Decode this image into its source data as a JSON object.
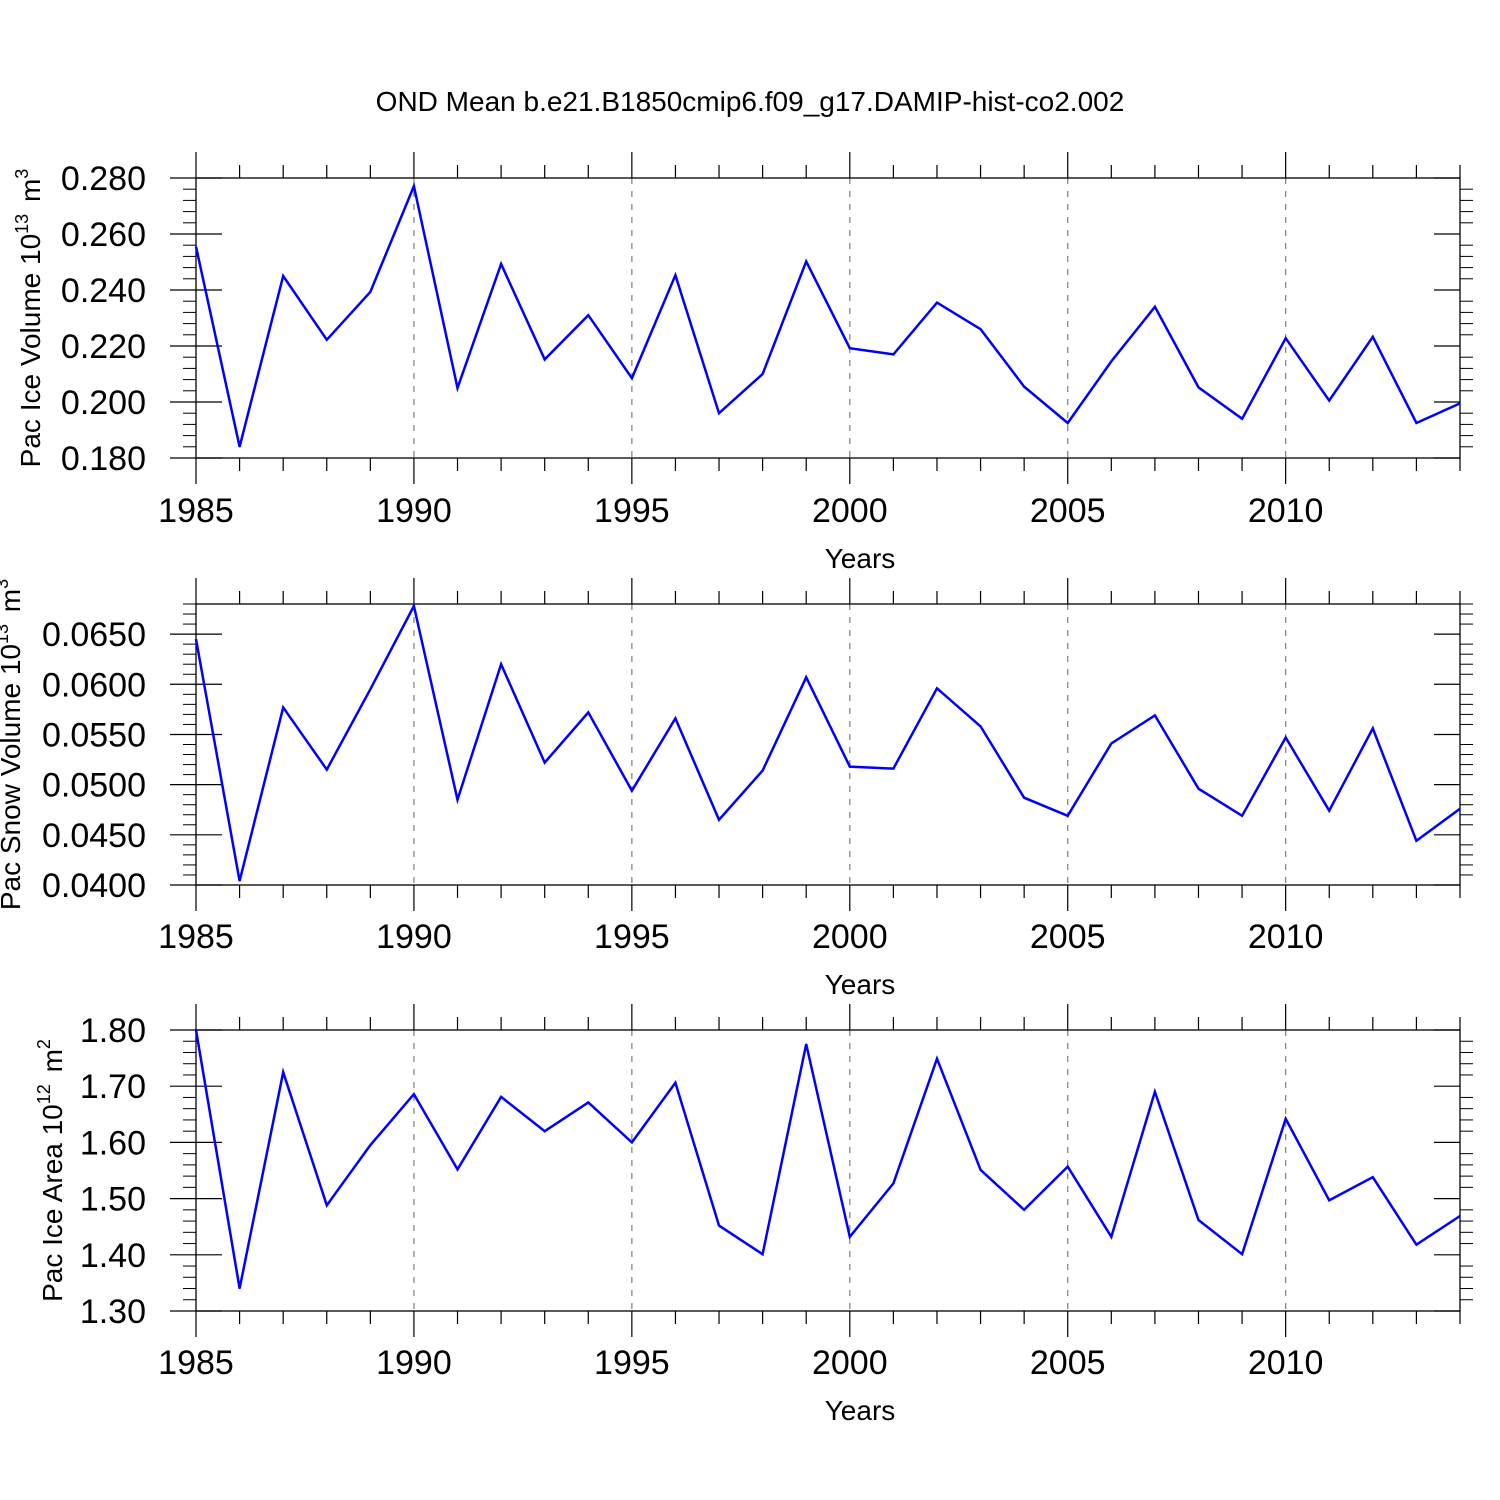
{
  "title": "OND Mean b.e21.B1850cmip6.f09_g17.DAMIP-hist-co2.002",
  "series_color": "#0000ff",
  "chart_data": [
    {
      "type": "line",
      "title": "",
      "xlabel": "Years",
      "ylabel": "Pac Ice Volume 10",
      "ylabel_exp": "13",
      "ylabel_unit": "m",
      "ylabel_unit_exp": "3",
      "xlim": [
        1985,
        2014
      ],
      "ylim": [
        0.18,
        0.28
      ],
      "xticks": [
        1985,
        1990,
        1995,
        2000,
        2005,
        2010
      ],
      "xtick_labels": [
        "1985",
        "1990",
        "1995",
        "2000",
        "2005",
        "2010"
      ],
      "yticks": [
        0.18,
        0.2,
        0.22,
        0.24,
        0.26,
        0.28
      ],
      "ytick_labels": [
        "0.180",
        "0.200",
        "0.220",
        "0.240",
        "0.260",
        "0.280"
      ],
      "yminor_step": 0.004,
      "x": [
        1985,
        1986,
        1987,
        1988,
        1989,
        1990,
        1991,
        1992,
        1993,
        1994,
        1995,
        1996,
        1997,
        1998,
        1999,
        2000,
        2001,
        2002,
        2003,
        2004,
        2005,
        2006,
        2007,
        2008,
        2009,
        2010,
        2011,
        2012,
        2013,
        2014
      ],
      "values": [
        0.2555,
        0.184,
        0.245,
        0.2222,
        0.2393,
        0.2771,
        0.205,
        0.2493,
        0.2152,
        0.231,
        0.2085,
        0.2453,
        0.196,
        0.21,
        0.2502,
        0.2192,
        0.217,
        0.2355,
        0.226,
        0.2055,
        0.1925,
        0.2145,
        0.234,
        0.2052,
        0.194,
        0.2228,
        0.2005,
        0.2233,
        0.1925,
        0.1995
      ]
    },
    {
      "type": "line",
      "title": "",
      "xlabel": "Years",
      "ylabel": "Pac Snow Volume 10",
      "ylabel_exp": "13",
      "ylabel_unit": "m",
      "ylabel_unit_exp": "3",
      "xlim": [
        1985,
        2014
      ],
      "ylim": [
        0.04,
        0.068
      ],
      "xticks": [
        1985,
        1990,
        1995,
        2000,
        2005,
        2010
      ],
      "xtick_labels": [
        "1985",
        "1990",
        "1995",
        "2000",
        "2005",
        "2010"
      ],
      "yticks": [
        0.04,
        0.045,
        0.05,
        0.055,
        0.06,
        0.065
      ],
      "ytick_labels": [
        "0.0400",
        "0.0450",
        "0.0500",
        "0.0550",
        "0.0600",
        "0.0650"
      ],
      "yminor_step": 0.001,
      "x": [
        1985,
        1986,
        1987,
        1988,
        1989,
        1990,
        1991,
        1992,
        1993,
        1994,
        1995,
        1996,
        1997,
        1998,
        1999,
        2000,
        2001,
        2002,
        2003,
        2004,
        2005,
        2006,
        2007,
        2008,
        2009,
        2010,
        2011,
        2012,
        2013,
        2014
      ],
      "values": [
        0.0645,
        0.0404,
        0.0577,
        0.0515,
        0.0595,
        0.0678,
        0.0485,
        0.062,
        0.0522,
        0.0572,
        0.0494,
        0.0566,
        0.0465,
        0.0514,
        0.0607,
        0.0518,
        0.0516,
        0.0596,
        0.0558,
        0.0487,
        0.0469,
        0.0541,
        0.0569,
        0.0496,
        0.0469,
        0.0547,
        0.0474,
        0.0556,
        0.0444,
        0.0476
      ]
    },
    {
      "type": "line",
      "title": "",
      "xlabel": "Years",
      "ylabel": "Pac Ice Area 10",
      "ylabel_exp": "12",
      "ylabel_unit": "m",
      "ylabel_unit_exp": "2",
      "xlim": [
        1985,
        2014
      ],
      "ylim": [
        1.3,
        1.8
      ],
      "xticks": [
        1985,
        1990,
        1995,
        2000,
        2005,
        2010
      ],
      "xtick_labels": [
        "1985",
        "1990",
        "1995",
        "2000",
        "2005",
        "2010"
      ],
      "yticks": [
        1.3,
        1.4,
        1.5,
        1.6,
        1.7,
        1.8
      ],
      "ytick_labels": [
        "1.30",
        "1.40",
        "1.50",
        "1.60",
        "1.70",
        "1.80"
      ],
      "yminor_step": 0.02,
      "x": [
        1985,
        1986,
        1987,
        1988,
        1989,
        1990,
        1991,
        1992,
        1993,
        1994,
        1995,
        1996,
        1997,
        1998,
        1999,
        2000,
        2001,
        2002,
        2003,
        2004,
        2005,
        2006,
        2007,
        2008,
        2009,
        2010,
        2011,
        2012,
        2013,
        2014
      ],
      "values": [
        1.8,
        1.34,
        1.725,
        1.488,
        1.595,
        1.686,
        1.552,
        1.681,
        1.62,
        1.671,
        1.6,
        1.706,
        1.452,
        1.401,
        1.775,
        1.432,
        1.527,
        1.749,
        1.551,
        1.48,
        1.557,
        1.432,
        1.69,
        1.462,
        1.401,
        1.642,
        1.497,
        1.538,
        1.418,
        1.469
      ]
    }
  ]
}
